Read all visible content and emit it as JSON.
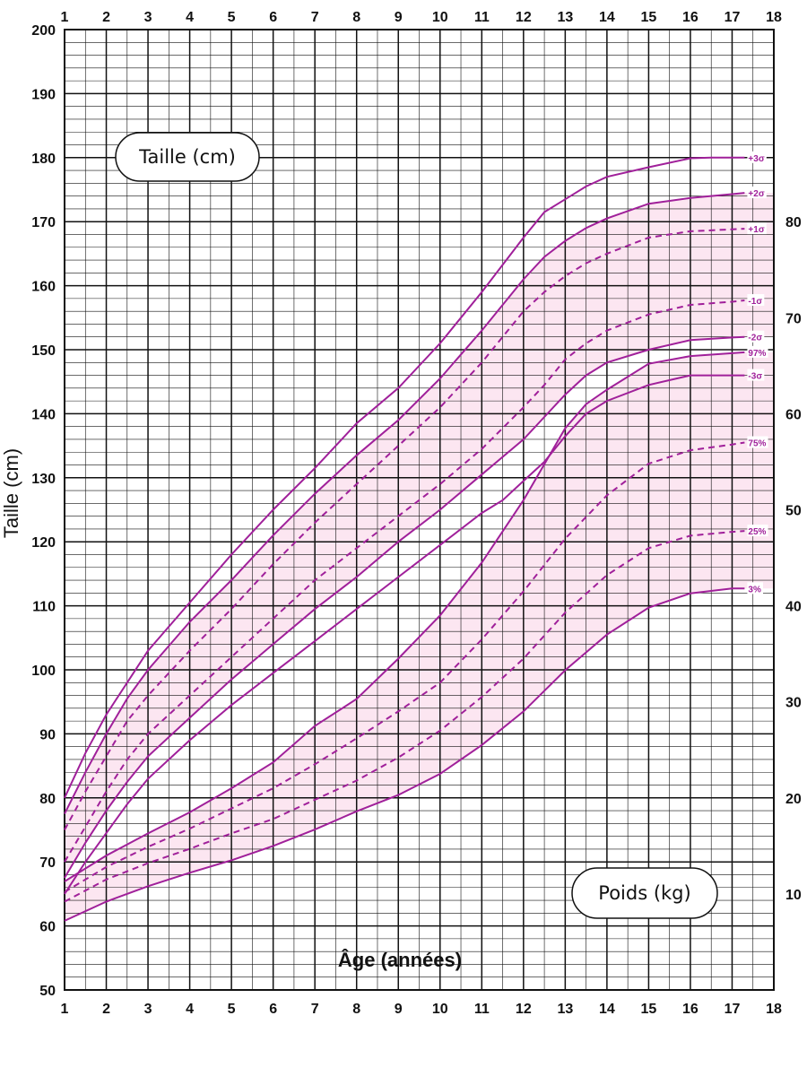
{
  "chart_data": {
    "type": "line",
    "xlabel": "Âge (années)",
    "ylabel": "Taille (cm)",
    "xlim": [
      1,
      18
    ],
    "ylim": [
      50,
      200
    ],
    "y2lim": [
      0,
      100
    ],
    "grid": true,
    "x_ticks": [
      "1",
      "2",
      "3",
      "4",
      "5",
      "6",
      "7",
      "8",
      "9",
      "10",
      "11",
      "12",
      "13",
      "14",
      "15",
      "16",
      "17",
      "18"
    ],
    "y_ticks": [
      "50",
      "60",
      "70",
      "80",
      "90",
      "100",
      "110",
      "120",
      "130",
      "140",
      "150",
      "160",
      "170",
      "180",
      "190",
      "200"
    ],
    "y2_ticks": [
      "10",
      "20",
      "30",
      "40",
      "50",
      "60",
      "70",
      "80"
    ],
    "height_box_label": "Taille (cm)",
    "weight_box_label": "Poids (kg)",
    "colors": {
      "curve": "#a0209a",
      "band": "#fce6f1",
      "grid": "#111111"
    },
    "height_series": [
      {
        "name": "+3σ",
        "style": "solid",
        "x": [
          1,
          1.5,
          2,
          2.5,
          3,
          4,
          5,
          6,
          7,
          8,
          9,
          10,
          11,
          12,
          12.5,
          13,
          13.5,
          14,
          15,
          16,
          16.5,
          17,
          17.3
        ],
        "y": [
          80,
          87,
          93,
          98,
          103,
          110.5,
          118,
          125,
          131.5,
          138.5,
          144,
          151,
          159,
          167.5,
          171.5,
          173.5,
          175.5,
          177,
          178.5,
          179.9,
          180,
          180,
          180
        ]
      },
      {
        "name": "+2σ",
        "style": "solid",
        "x": [
          1,
          1.5,
          2,
          2.5,
          3,
          4,
          5,
          6,
          7,
          8,
          9,
          10,
          11,
          12,
          12.5,
          13,
          13.5,
          14,
          15,
          16,
          17,
          17.3
        ],
        "y": [
          77.5,
          84,
          90,
          95.5,
          100,
          107.5,
          114,
          121,
          127.5,
          133.5,
          139,
          145.5,
          153,
          161,
          164.5,
          167,
          169,
          170.5,
          172.8,
          173.7,
          174.3,
          174.5
        ]
      },
      {
        "name": "+1σ",
        "style": "dashed",
        "x": [
          1,
          1.5,
          2,
          2.5,
          3,
          4,
          5,
          6,
          7,
          8,
          9,
          10,
          11,
          12,
          12.5,
          13,
          13.5,
          14,
          15,
          16,
          17,
          17.3
        ],
        "y": [
          75,
          81,
          86.5,
          92,
          96,
          103,
          109.5,
          116.5,
          123,
          129,
          135,
          141,
          148,
          156,
          159,
          161.5,
          163.5,
          165,
          167.5,
          168.5,
          168.8,
          168.9
        ]
      },
      {
        "name": "-1σ",
        "style": "dashed",
        "x": [
          1,
          1.5,
          2,
          2.5,
          3,
          4,
          5,
          6,
          7,
          8,
          9,
          10,
          11,
          12,
          12.5,
          13,
          13.5,
          14,
          15,
          16,
          17,
          17.3
        ],
        "y": [
          70,
          75.5,
          81,
          86,
          90,
          96,
          102,
          108,
          114,
          119,
          124,
          129,
          134.5,
          141,
          144.5,
          148.5,
          151,
          153,
          155.5,
          157,
          157.5,
          157.7
        ]
      },
      {
        "name": "-2σ",
        "style": "solid",
        "x": [
          1,
          1.5,
          2,
          2.5,
          3,
          4,
          5,
          6,
          7,
          8,
          9,
          10,
          11,
          12,
          12.5,
          13,
          13.5,
          14,
          15,
          16,
          17,
          17.3
        ],
        "y": [
          67.5,
          73,
          78,
          82.5,
          86.5,
          92.5,
          98.5,
          104,
          109.5,
          114.5,
          120,
          125,
          130.5,
          136,
          139.5,
          143,
          146,
          148,
          150,
          151.5,
          151.9,
          152
        ]
      },
      {
        "name": "-3σ",
        "style": "solid",
        "x": [
          1,
          1.5,
          2,
          2.5,
          3,
          4,
          5,
          6,
          7,
          8,
          9,
          10,
          11,
          11.5,
          12,
          12.5,
          13,
          13.5,
          14,
          15,
          16,
          16.5,
          17,
          17.3
        ],
        "y": [
          65,
          70,
          74.5,
          79,
          83,
          89,
          94.5,
          99.5,
          104.5,
          109.5,
          114.5,
          119.5,
          124.5,
          126.5,
          129.5,
          132.5,
          136.5,
          140,
          142,
          144.5,
          146,
          146,
          146,
          146
        ]
      }
    ],
    "weight_series": [
      {
        "name": "97%",
        "style": "solid",
        "x": [
          1,
          2,
          3,
          4,
          5,
          6,
          7,
          8,
          9,
          10,
          11,
          12,
          13,
          13.5,
          14,
          15,
          16,
          17,
          17.3
        ],
        "y": [
          11.3,
          14,
          16.3,
          18.5,
          21,
          23.7,
          27.5,
          30.3,
          34.5,
          39,
          44.5,
          51,
          58.5,
          61,
          62.5,
          65.2,
          66,
          66.3,
          66.4
        ]
      },
      {
        "name": "75%",
        "style": "dashed",
        "x": [
          1,
          2,
          3,
          4,
          5,
          6,
          7,
          8,
          9,
          10,
          11,
          12,
          13,
          14,
          15,
          16,
          17,
          17.3
        ],
        "y": [
          10.2,
          12.8,
          14.9,
          16.8,
          18.9,
          21,
          23.5,
          26.2,
          29,
          32,
          36.5,
          41.5,
          47,
          51.5,
          54.8,
          56.2,
          56.8,
          57
        ]
      },
      {
        "name": "25%",
        "style": "dashed",
        "x": [
          1,
          2,
          3,
          4,
          5,
          6,
          7,
          8,
          9,
          10,
          11,
          12,
          13,
          14,
          15,
          16,
          17,
          17.3
        ],
        "y": [
          9.2,
          11.5,
          13.2,
          14.7,
          16.3,
          17.8,
          19.8,
          21.8,
          24.2,
          27,
          30.5,
          34.5,
          39.3,
          43.2,
          46,
          47.3,
          47.7,
          47.8
        ]
      },
      {
        "name": "3%",
        "style": "solid",
        "x": [
          1,
          2,
          3,
          4,
          5,
          6,
          7,
          8,
          9,
          10,
          11,
          12,
          13,
          14,
          15,
          16,
          17,
          17.3
        ],
        "y": [
          7.2,
          9.2,
          10.8,
          12.2,
          13.5,
          15,
          16.7,
          18.6,
          20.3,
          22.5,
          25.5,
          29,
          33.3,
          37,
          39.8,
          41.3,
          41.8,
          41.8
        ]
      }
    ],
    "bands": [
      {
        "between": [
          "+2σ",
          "-2σ"
        ],
        "axis": "height"
      },
      {
        "between": [
          "97%",
          "3%"
        ],
        "axis": "weight"
      }
    ]
  }
}
